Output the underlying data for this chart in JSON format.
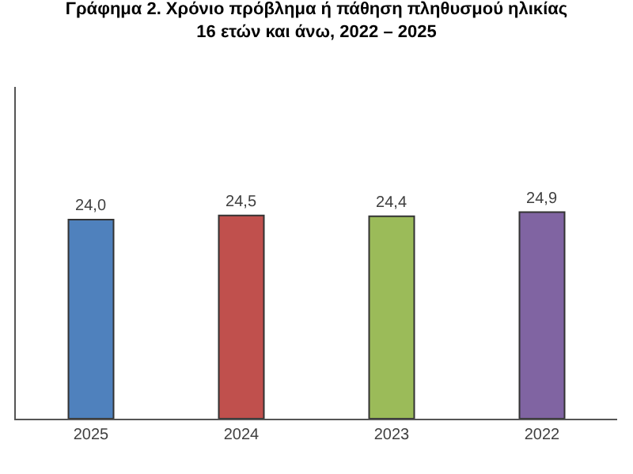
{
  "chart_data": {
    "type": "bar",
    "title": "Γράφημα 2. Χρόνιο πρόβλημα ή πάθηση πληθυσμού ηλικίας 16 ετών και άνω, 2022 – 2025",
    "categories": [
      "2025",
      "2024",
      "2023",
      "2022"
    ],
    "values": [
      24.0,
      24.5,
      24.4,
      24.9
    ],
    "colors": [
      "#4f81bd",
      "#c0504d",
      "#9bbb59",
      "#8064a2"
    ],
    "value_labels": [
      "24,0",
      "24,5",
      "24,4",
      "24,9"
    ],
    "ylim": [
      0,
      40
    ],
    "tick_labels": "x"
  }
}
